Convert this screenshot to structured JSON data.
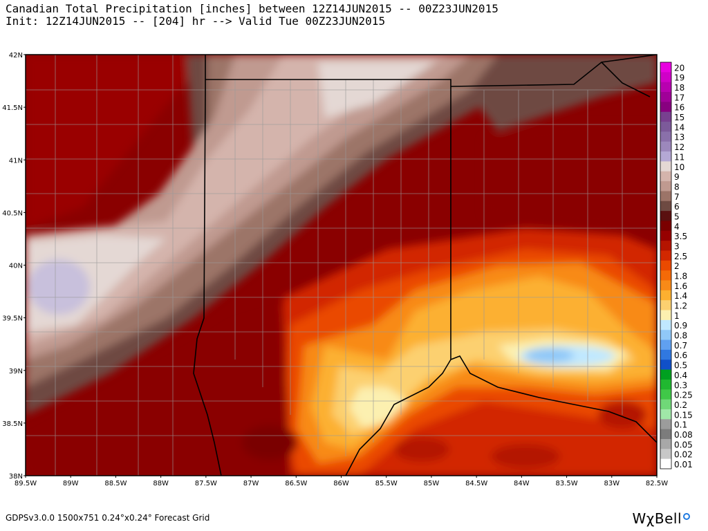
{
  "header": {
    "title_line1": "Canadian Total Precipitation [inches] between 12Z14JUN2015 -- 00Z23JUN2015",
    "title_line2": "Init: 12Z14JUN2015 -- [204] hr --> Valid Tue 00Z23JUN2015"
  },
  "map": {
    "lat_labels": [
      "42N",
      "41.5N",
      "41N",
      "40.5N",
      "40N",
      "39.5N",
      "39N",
      "38.5N",
      "38N"
    ],
    "lon_labels": [
      "89.5W",
      "89W",
      "88.5W",
      "88W",
      "87.5W",
      "87W",
      "86.5W",
      "86W",
      "85.5W",
      "85W",
      "84.5W",
      "84W",
      "83.5W",
      "83W",
      "82.5W"
    ],
    "lat_range": [
      38,
      42
    ],
    "lon_range": [
      -89.5,
      -82.5
    ]
  },
  "legend": {
    "levels": [
      "20",
      "19",
      "18",
      "17",
      "16",
      "15",
      "14",
      "13",
      "12",
      "11",
      "10",
      "9",
      "8",
      "7",
      "6",
      "5",
      "4",
      "3.5",
      "3",
      "2.5",
      "2",
      "1.8",
      "1.6",
      "1.4",
      "1.2",
      "1",
      "0.9",
      "0.8",
      "0.7",
      "0.6",
      "0.5",
      "0.4",
      "0.3",
      "0.25",
      "0.2",
      "0.15",
      "0.1",
      "0.08",
      "0.05",
      "0.02",
      "0.01"
    ],
    "colors": [
      "#e800e0",
      "#d000c8",
      "#b800b0",
      "#a00098",
      "#880080",
      "#784090",
      "#7c5a9a",
      "#8a70aa",
      "#9c88bc",
      "#b4a8d4",
      "#e4d8d4",
      "#d4b4ac",
      "#c09a90",
      "#9c7468",
      "#6e4a42",
      "#5a1010",
      "#7a0000",
      "#960000",
      "#b41400",
      "#d22800",
      "#ea4a00",
      "#f46a08",
      "#f88a18",
      "#fcb030",
      "#fcd070",
      "#fcf0b0",
      "#c0e8ff",
      "#90c8f8",
      "#60a0f0",
      "#3078e0",
      "#1050c8",
      "#00a020",
      "#20b830",
      "#40c848",
      "#70d878",
      "#a0e8a8",
      "#9c9c9c",
      "#7c7c7c",
      "#a8a8a8",
      "#c8c8c8",
      "#ffffff"
    ]
  },
  "footer": {
    "grid_info": "GDPSv3.0.0  1500x751  0.24°x0.24° Forecast Grid",
    "brand": "WχBell"
  }
}
